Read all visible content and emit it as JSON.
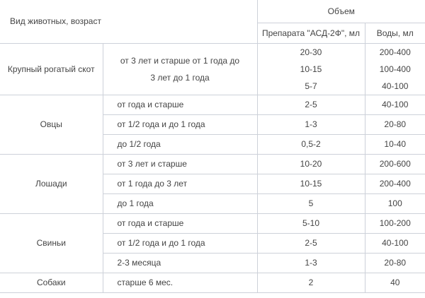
{
  "header": {
    "species_age": "Вид животных, возраст",
    "volume": "Объем",
    "drug": "Препарата \"АСД-2Ф\", мл",
    "water": "Воды, мл"
  },
  "groups": [
    {
      "animal": "Крупный рогатый скот",
      "rows": [
        {
          "age": "от 3 лет и старше от 1 года до 3 лет до 1 года",
          "drug": [
            "20-30",
            "10-15",
            "5-7"
          ],
          "water": [
            "200-400",
            "100-400",
            "40-100"
          ]
        }
      ]
    },
    {
      "animal": "Овцы",
      "rows": [
        {
          "age": "от года и старше",
          "drug": "2-5",
          "water": "40-100"
        },
        {
          "age": "от 1/2 года и до 1 года",
          "drug": "1-3",
          "water": "20-80"
        },
        {
          "age": "до 1/2 года",
          "drug": "0,5-2",
          "water": "10-40"
        }
      ]
    },
    {
      "animal": "Лошади",
      "rows": [
        {
          "age": "от 3 лет и старше",
          "drug": "10-20",
          "water": "200-600"
        },
        {
          "age": "от 1 года до 3 лет",
          "drug": "10-15",
          "water": "200-400"
        },
        {
          "age": "до 1 года",
          "drug": "5",
          "water": "100"
        }
      ]
    },
    {
      "animal": "Свиньи",
      "rows": [
        {
          "age": "от года и старше",
          "drug": "5-10",
          "water": "100-200"
        },
        {
          "age": "от 1/2 года и до 1 года",
          "drug": "2-5",
          "water": "40-100"
        },
        {
          "age": "2-3 месяца",
          "drug": "1-3",
          "water": "20-80"
        }
      ]
    },
    {
      "animal": "Собаки",
      "rows": [
        {
          "age": "старше 6 мес.",
          "drug": "2",
          "water": "40"
        }
      ]
    }
  ]
}
